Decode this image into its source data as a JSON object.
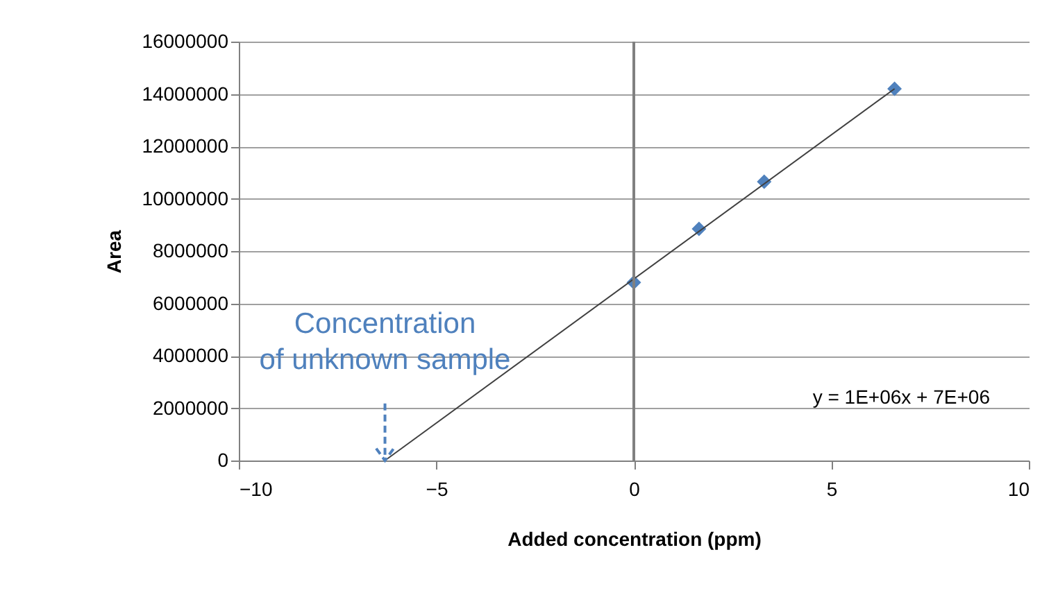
{
  "chart_data": {
    "type": "scatter",
    "xlabel": "Added concentration (ppm)",
    "ylabel": "Area",
    "xlim": [
      -10,
      10
    ],
    "xticks": [
      -10,
      -5,
      0,
      5,
      10
    ],
    "ylim": [
      0,
      16000000
    ],
    "yticks": [
      0,
      2000000,
      4000000,
      6000000,
      8000000,
      10000000,
      12000000,
      14000000,
      16000000
    ],
    "grid": "y",
    "marker": "diamond",
    "series": [
      {
        "color": "#4f81bd",
        "x": [
          0,
          1.65,
          3.3,
          6.6
        ],
        "values": [
          6800000,
          8850000,
          10650000,
          14200000
        ]
      },
      {
        "type": "line",
        "marker": "none",
        "color": "#404040",
        "x": [
          -6.3,
          6.6
        ],
        "values": [
          0,
          14200000
        ]
      }
    ],
    "ref_lines": [
      {
        "axis": "x",
        "value": 0,
        "color": "#808080"
      }
    ],
    "annotations": [
      {
        "text": "Concentration\nof unknown sample",
        "x": -6.3,
        "y": 0
      },
      "y = 1E+06x + 7E+06"
    ]
  }
}
